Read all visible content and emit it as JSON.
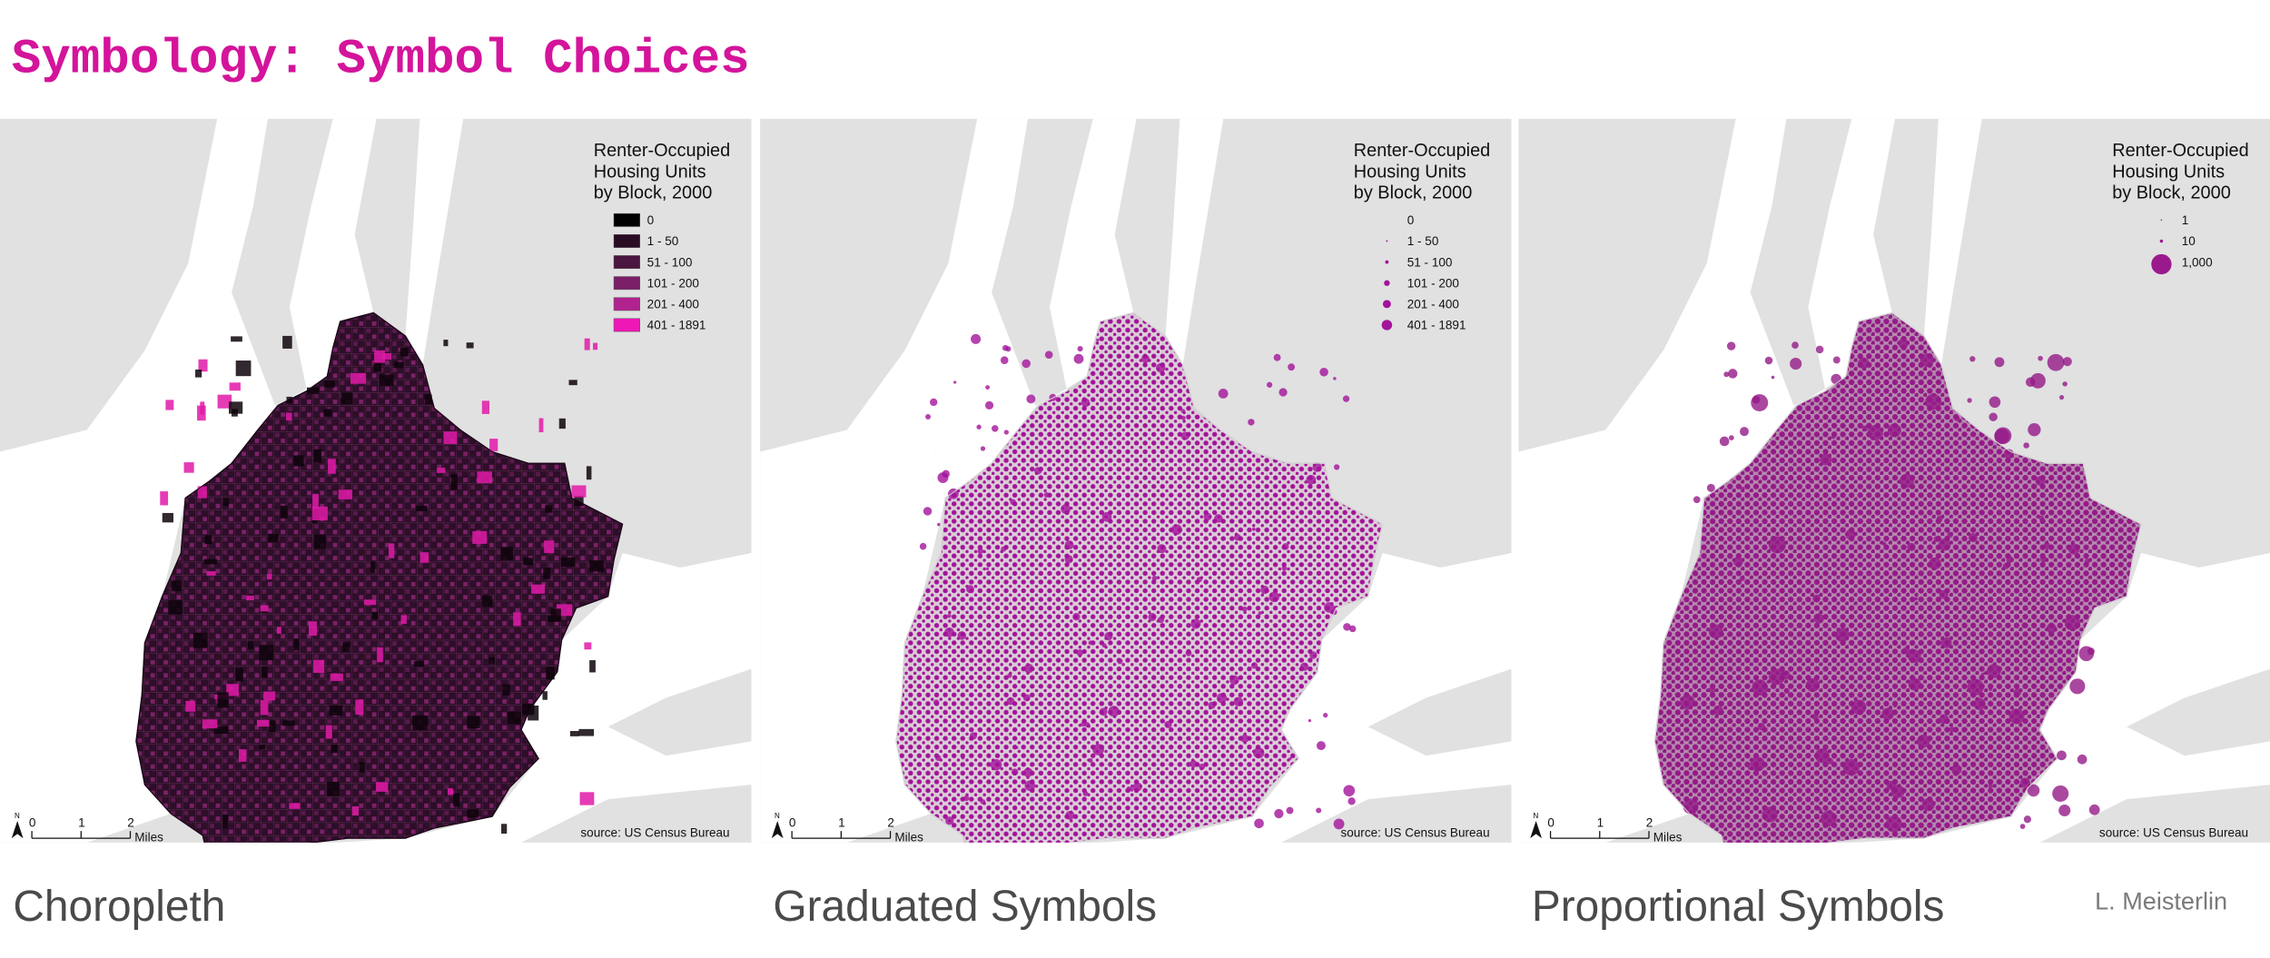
{
  "title": "Symbology: Symbol Choices",
  "author": "L. Meisterlin",
  "panels": [
    {
      "legend": {
        "title": [
          "Renter-Occupied",
          "Housing Units",
          "by Block, 2000"
        ],
        "items": [
          {
            "label": "0",
            "color": "#000000"
          },
          {
            "label": "1 - 50",
            "color": "#2a0b24"
          },
          {
            "label": "51 - 100",
            "color": "#4a1740"
          },
          {
            "label": "101 - 200",
            "color": "#7a1f68"
          },
          {
            "label": "201 - 400",
            "color": "#b0238f"
          },
          {
            "label": "401 - 1891",
            "color": "#ee17b5"
          }
        ]
      },
      "north": "N",
      "scale": {
        "ticks": [
          0,
          1,
          2
        ],
        "unit": "Miles"
      },
      "source": "source: US Census Bureau",
      "caption": "Choropleth"
    },
    {
      "legend": {
        "title": [
          "Renter-Occupied",
          "Housing Units",
          "by Block, 2000"
        ],
        "items": [
          {
            "label": "0",
            "color": "#a3139a"
          },
          {
            "label": "1 - 50",
            "color": "#a3139a"
          },
          {
            "label": "51 - 100",
            "color": "#a3139a"
          },
          {
            "label": "101 - 200",
            "color": "#a3139a"
          },
          {
            "label": "201 - 400",
            "color": "#a3139a"
          },
          {
            "label": "401 - 1891",
            "color": "#a3139a"
          }
        ]
      },
      "north": "N",
      "scale": {
        "ticks": [
          0,
          1,
          2
        ],
        "unit": "Miles"
      },
      "source": "source: US Census Bureau",
      "caption": "Graduated Symbols"
    },
    {
      "legend": {
        "title": [
          "Renter-Occupied",
          "Housing Units",
          "by Block, 2000"
        ],
        "items": [
          {
            "label": "1",
            "color": "#9a1a8e"
          },
          {
            "label": "10",
            "color": "#9a1a8e"
          },
          {
            "label": "1,000",
            "color": "#9a1a8e"
          }
        ]
      },
      "north": "N",
      "scale": {
        "ticks": [
          0,
          1,
          2
        ],
        "unit": "Miles"
      },
      "source": "source: US Census Bureau",
      "caption": "Proportional Symbols"
    }
  ]
}
